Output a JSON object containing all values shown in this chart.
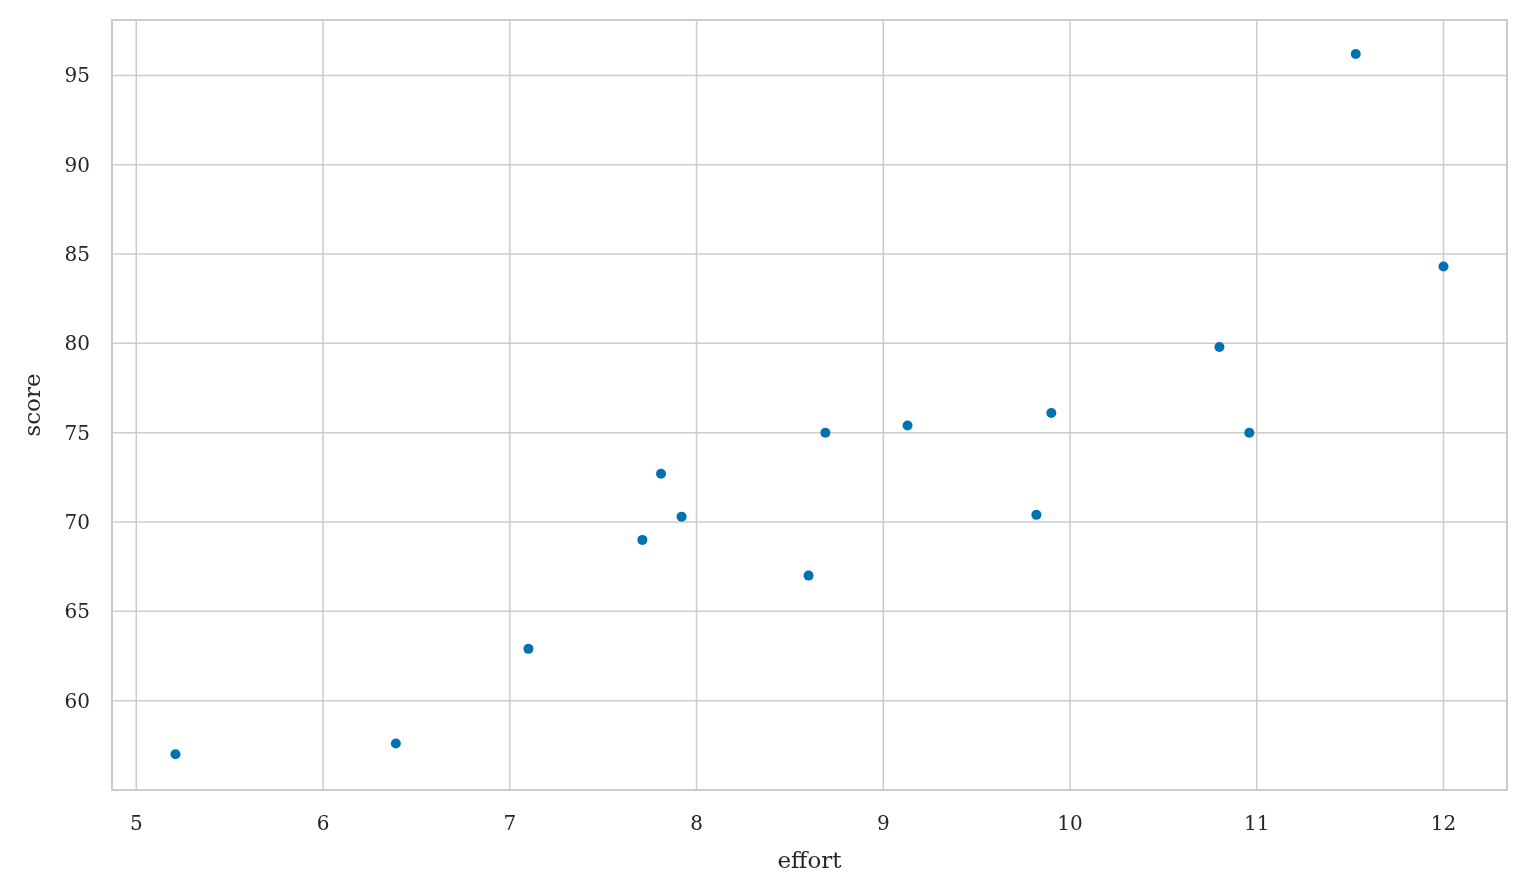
{
  "chart_data": {
    "type": "scatter",
    "xlabel": "effort",
    "ylabel": "score",
    "x": [
      5.21,
      6.39,
      7.1,
      7.71,
      7.81,
      7.92,
      8.6,
      8.69,
      9.13,
      9.82,
      9.9,
      10.8,
      10.96,
      11.53,
      12.0
    ],
    "series": [
      {
        "color": "#0072b2",
        "values": [
          57.0,
          57.6,
          62.9,
          69.0,
          72.7,
          70.3,
          67.0,
          75.0,
          75.4,
          70.4,
          76.1,
          79.8,
          75.0,
          96.2,
          84.3
        ]
      }
    ],
    "xlim": [
      4.87,
      12.34
    ],
    "ylim": [
      55.0,
      98.1
    ],
    "xticks": [
      5,
      6,
      7,
      8,
      9,
      10,
      11,
      12
    ],
    "yticks": [
      60,
      65,
      70,
      75,
      80,
      85,
      90,
      95
    ],
    "grid": true,
    "marker": "circle"
  }
}
